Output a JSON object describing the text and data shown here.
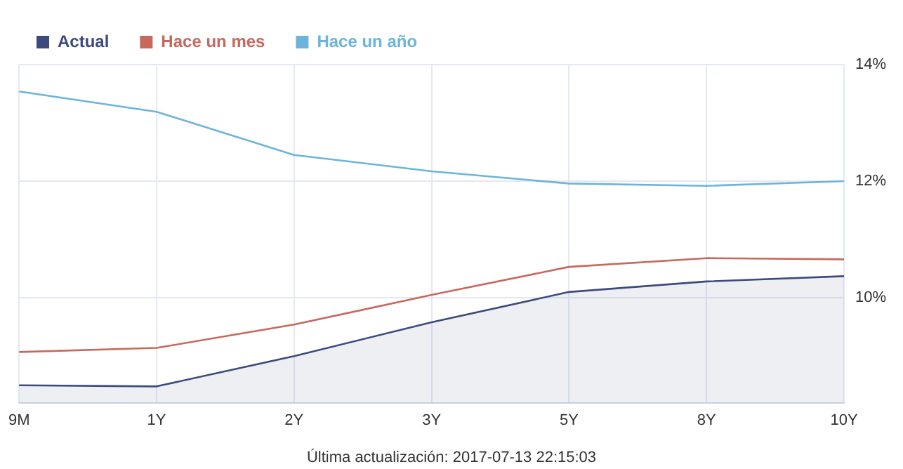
{
  "chart_data": {
    "type": "line",
    "categories": [
      "9M",
      "1Y",
      "2Y",
      "3Y",
      "5Y",
      "8Y",
      "10Y"
    ],
    "series": [
      {
        "name": "Actual",
        "type": "area",
        "color": "#3d4b7c",
        "values": [
          8.5,
          8.48,
          9.0,
          9.58,
          10.1,
          10.28,
          10.37
        ]
      },
      {
        "name": "Hace un mes",
        "color": "#c8685d",
        "values": [
          9.07,
          9.14,
          9.54,
          10.05,
          10.53,
          10.68,
          10.66
        ]
      },
      {
        "name": "Hace un año",
        "color": "#6cb4dc",
        "values": [
          13.54,
          13.19,
          12.45,
          12.17,
          11.96,
          11.92,
          12.0
        ]
      }
    ],
    "ylim": [
      8.2,
      14
    ],
    "yticks": [
      {
        "value": 10,
        "label": "10%"
      },
      {
        "value": 12,
        "label": "12%"
      },
      {
        "value": 14,
        "label": "14%"
      }
    ],
    "grid": true,
    "legend": "top left",
    "marker": "none",
    "annotations": [
      "Última actualización: 2017-07-13 22:15:03"
    ]
  }
}
